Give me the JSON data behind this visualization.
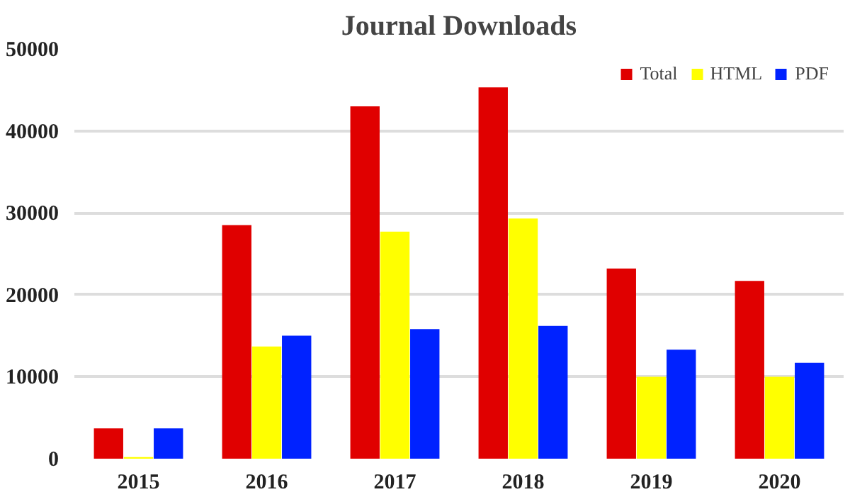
{
  "chart_data": {
    "type": "bar",
    "title": "Journal Downloads",
    "categories": [
      "2015",
      "2016",
      "2017",
      "2018",
      "2019",
      "2020"
    ],
    "series": [
      {
        "name": "Total",
        "color": "#e00000",
        "values": [
          3700,
          28500,
          43000,
          45300,
          23200,
          21700
        ]
      },
      {
        "name": "HTML",
        "color": "#ffff00",
        "values": [
          200,
          13700,
          27700,
          29300,
          10000,
          10000
        ]
      },
      {
        "name": "PDF",
        "color": "#0022ff",
        "values": [
          3700,
          15000,
          15800,
          16200,
          13300,
          11700
        ]
      }
    ],
    "ylim": [
      0,
      50000
    ],
    "yticks": [
      0,
      10000,
      20000,
      30000,
      40000,
      50000
    ],
    "grid": "y",
    "legend": "top right"
  }
}
